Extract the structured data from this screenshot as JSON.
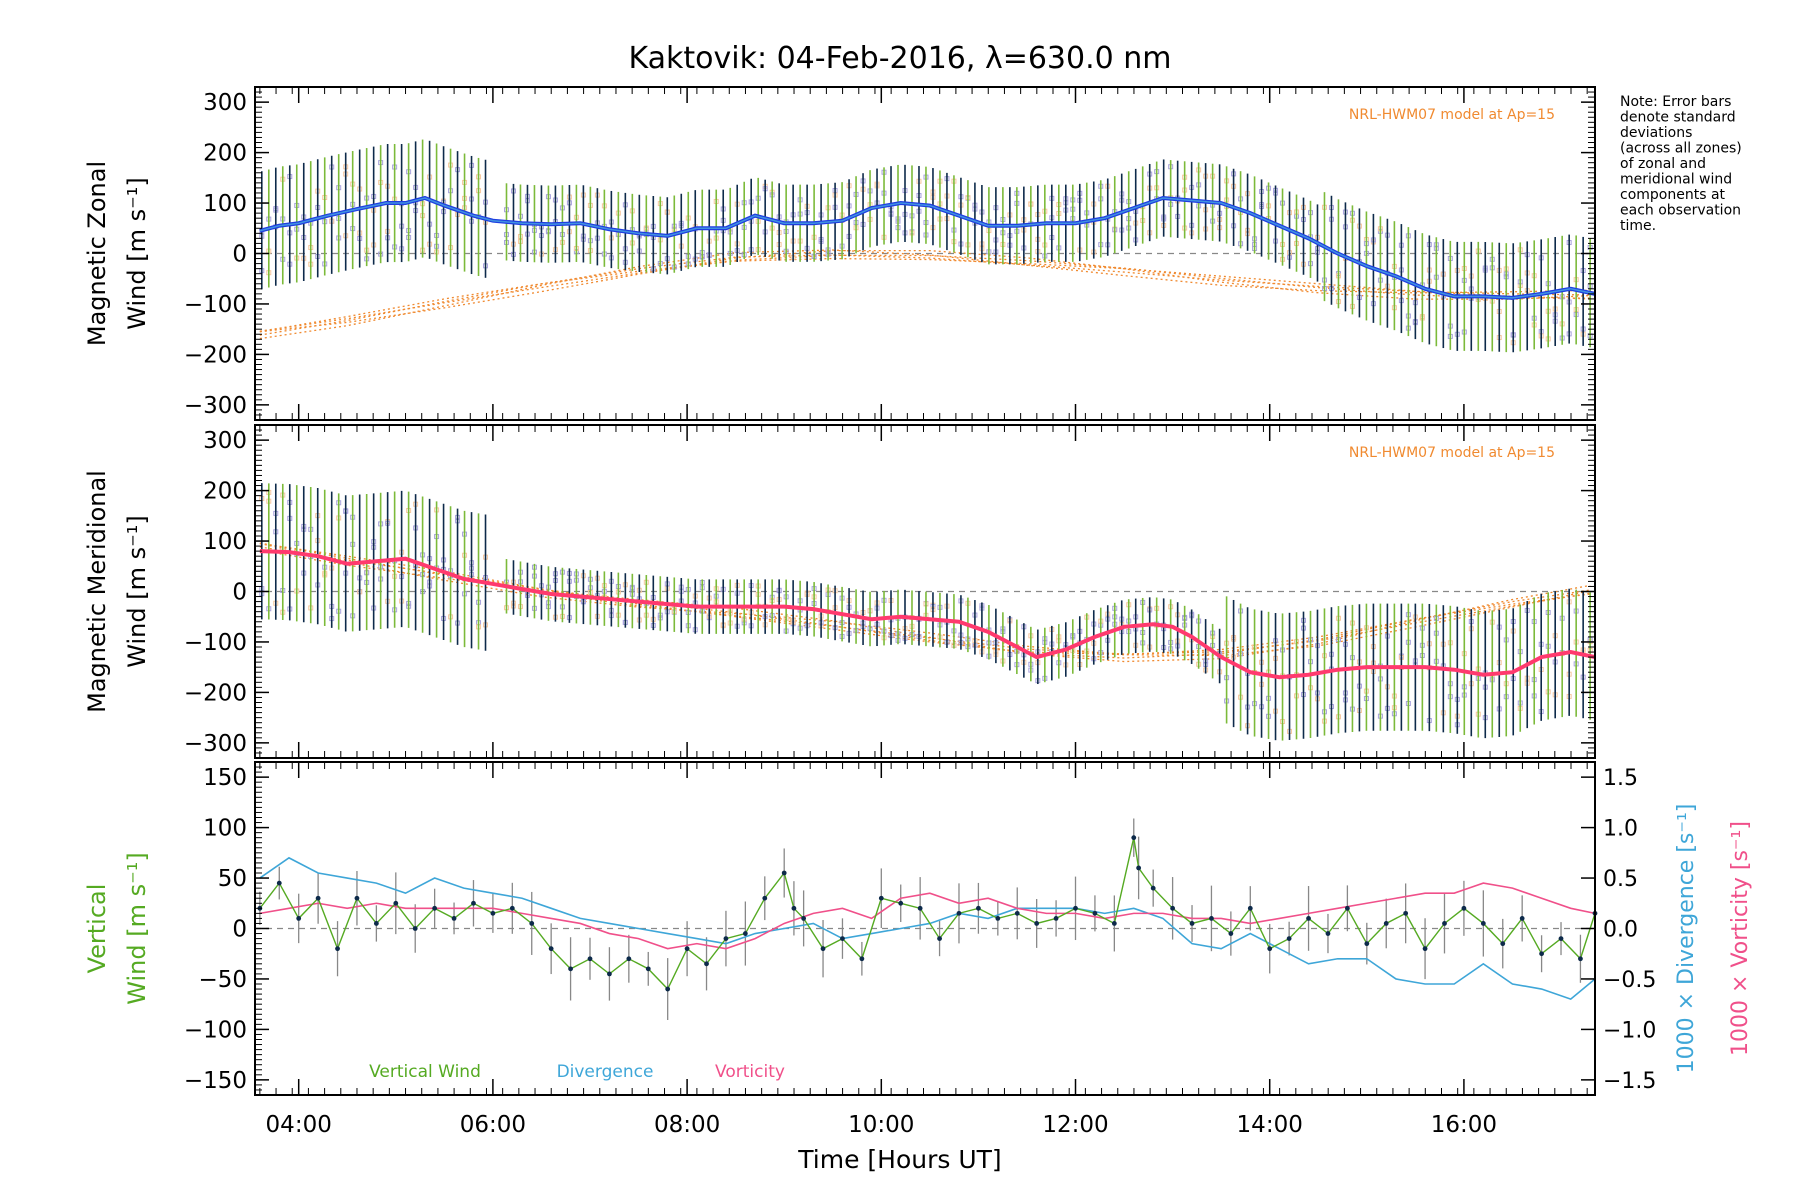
{
  "title": "Kaktovik: 04-Feb-2016, λ=630.0 nm",
  "xlabel": "Time [Hours UT]",
  "note": [
    "Note: Error bars",
    "denote standard",
    "deviations",
    "(across all zones)",
    "of zonal and",
    "meridional wind",
    "components at",
    "each observation",
    "time."
  ],
  "model_label": "NRL-HWM07 model at Ap=15",
  "colors": {
    "zonal": "#1f3fe0",
    "zonal_light": "#4aa8e0",
    "meridional": "#ff3a6e",
    "vertical": "#55aa22",
    "divergence": "#3ea6d8",
    "vorticity": "#f0508a",
    "model": "#f08a30",
    "scatter": "#a9a3dd",
    "errbar_dark": "#0d2a4a",
    "errbar_green": "#7cba3a"
  },
  "chart_data": [
    {
      "type": "line",
      "panel": "zonal",
      "ylabel": [
        "Magnetic Zonal",
        "Wind [m s⁻¹]"
      ],
      "ylim": [
        -330,
        330
      ],
      "yticks": [
        -300,
        -200,
        -100,
        0,
        100,
        200,
        300
      ],
      "xlim": [
        3.55,
        17.35
      ],
      "xticks": [
        4,
        6,
        8,
        10,
        12,
        14,
        16
      ],
      "xticklabels": [
        "04:00",
        "06:00",
        "08:00",
        "10:00",
        "12:00",
        "14:00",
        "16:00"
      ],
      "zero_line": true,
      "series": [
        {
          "kind": "mean",
          "x": [
            3.6,
            3.8,
            4.0,
            4.3,
            4.6,
            4.9,
            5.1,
            5.3,
            5.5,
            5.8,
            6.0,
            6.3,
            6.6,
            6.9,
            7.2,
            7.5,
            7.8,
            8.1,
            8.4,
            8.7,
            9.0,
            9.3,
            9.6,
            9.9,
            10.2,
            10.5,
            10.8,
            11.1,
            11.4,
            11.7,
            12.0,
            12.3,
            12.6,
            12.9,
            13.2,
            13.5,
            13.8,
            14.1,
            14.4,
            14.7,
            15.0,
            15.3,
            15.6,
            15.9,
            16.2,
            16.5,
            16.8,
            17.1,
            17.35
          ],
          "y": [
            45,
            55,
            60,
            75,
            88,
            100,
            100,
            110,
            95,
            75,
            65,
            60,
            58,
            60,
            48,
            40,
            35,
            50,
            50,
            75,
            60,
            60,
            65,
            90,
            100,
            95,
            75,
            55,
            55,
            60,
            60,
            70,
            90,
            110,
            105,
            100,
            80,
            55,
            30,
            0,
            -25,
            -45,
            -70,
            -85,
            -85,
            -88,
            -80,
            -70,
            -80
          ]
        },
        {
          "kind": "model",
          "x": [
            3.6,
            4.5,
            5.5,
            6.5,
            7.5,
            8.5,
            9.5,
            10.5,
            11.5,
            12.5,
            13.5,
            14.5,
            15.5,
            16.5,
            17.3
          ],
          "y": [
            -155,
            -125,
            -90,
            -60,
            -35,
            -15,
            -10,
            -12,
            -20,
            -30,
            -45,
            -60,
            -75,
            -85,
            -90
          ]
        }
      ]
    },
    {
      "type": "line",
      "panel": "meridional",
      "ylabel": [
        "Magnetic Meridional",
        "Wind [m s⁻¹]"
      ],
      "ylim": [
        -330,
        330
      ],
      "yticks": [
        -300,
        -200,
        -100,
        0,
        100,
        200,
        300
      ],
      "xlim": [
        3.55,
        17.35
      ],
      "xticks": [
        4,
        6,
        8,
        10,
        12,
        14,
        16
      ],
      "zero_line": true,
      "series": [
        {
          "kind": "mean",
          "x": [
            3.6,
            3.9,
            4.2,
            4.5,
            4.8,
            5.1,
            5.4,
            5.7,
            6.0,
            6.3,
            6.6,
            6.9,
            7.2,
            7.5,
            7.8,
            8.1,
            8.4,
            8.7,
            9.0,
            9.3,
            9.6,
            9.9,
            10.2,
            10.5,
            10.8,
            11.1,
            11.4,
            11.6,
            11.9,
            12.2,
            12.5,
            12.8,
            13.0,
            13.2,
            13.5,
            13.8,
            14.1,
            14.4,
            14.7,
            15.0,
            15.3,
            15.6,
            15.9,
            16.2,
            16.5,
            16.8,
            17.1,
            17.35
          ],
          "y": [
            80,
            78,
            70,
            55,
            60,
            65,
            45,
            25,
            15,
            5,
            -5,
            -10,
            -15,
            -20,
            -25,
            -30,
            -30,
            -30,
            -30,
            -35,
            -45,
            -55,
            -50,
            -55,
            -60,
            -80,
            -110,
            -130,
            -115,
            -90,
            -70,
            -65,
            -70,
            -90,
            -130,
            -160,
            -170,
            -165,
            -155,
            -150,
            -150,
            -150,
            -155,
            -165,
            -160,
            -130,
            -120,
            -130
          ]
        },
        {
          "kind": "model",
          "x": [
            3.6,
            4.5,
            5.5,
            6.5,
            7.5,
            8.5,
            9.5,
            10.5,
            11.5,
            12.5,
            13.5,
            14.5,
            15.5,
            16.5,
            17.3
          ],
          "y": [
            95,
            70,
            40,
            5,
            -25,
            -50,
            -75,
            -100,
            -120,
            -125,
            -115,
            -90,
            -55,
            -25,
            -5
          ]
        }
      ]
    },
    {
      "type": "line",
      "panel": "vertical",
      "ylabel": [
        "Vertical",
        "Wind [m s⁻¹]"
      ],
      "ylim": [
        -165,
        165
      ],
      "yticks": [
        -150,
        -100,
        -50,
        0,
        50,
        100,
        150
      ],
      "y2lim": [
        -1.65,
        1.65
      ],
      "y2ticks": [
        -1.5,
        -1.0,
        -0.5,
        0.0,
        0.5,
        1.0,
        1.5
      ],
      "y2labels": [
        "1000 × Divergence [s⁻¹]",
        "1000 × Vorticity [s⁻¹]"
      ],
      "xlim": [
        3.55,
        17.35
      ],
      "xticks": [
        4,
        6,
        8,
        10,
        12,
        14,
        16
      ],
      "zero_line": true,
      "legend": [
        "Vertical Wind",
        "Divergence",
        "Vorticity"
      ],
      "series": [
        {
          "name": "Vertical Wind",
          "x": [
            3.6,
            3.8,
            4.0,
            4.2,
            4.4,
            4.6,
            4.8,
            5.0,
            5.2,
            5.4,
            5.6,
            5.8,
            6.0,
            6.2,
            6.4,
            6.6,
            6.8,
            7.0,
            7.2,
            7.4,
            7.6,
            7.8,
            8.0,
            8.2,
            8.4,
            8.6,
            8.8,
            9.0,
            9.1,
            9.2,
            9.4,
            9.6,
            9.8,
            10.0,
            10.2,
            10.4,
            10.6,
            10.8,
            11.0,
            11.2,
            11.4,
            11.6,
            11.8,
            12.0,
            12.2,
            12.4,
            12.6,
            12.65,
            12.8,
            13.0,
            13.2,
            13.4,
            13.6,
            13.8,
            14.0,
            14.2,
            14.4,
            14.6,
            14.8,
            15.0,
            15.2,
            15.4,
            15.6,
            15.8,
            16.0,
            16.2,
            16.4,
            16.6,
            16.8,
            17.0,
            17.2,
            17.35
          ],
          "y": [
            20,
            45,
            10,
            30,
            -20,
            30,
            5,
            25,
            0,
            20,
            10,
            25,
            15,
            20,
            5,
            -20,
            -40,
            -30,
            -45,
            -30,
            -40,
            -60,
            -20,
            -35,
            -10,
            -5,
            30,
            55,
            20,
            10,
            -20,
            -10,
            -30,
            30,
            25,
            20,
            -10,
            15,
            20,
            10,
            15,
            5,
            10,
            20,
            15,
            5,
            90,
            60,
            40,
            20,
            5,
            10,
            -5,
            20,
            -20,
            -10,
            10,
            -5,
            20,
            -15,
            5,
            15,
            -20,
            5,
            20,
            5,
            -15,
            10,
            -25,
            -10,
            -30,
            15
          ],
          "error": 22
        },
        {
          "name": "Divergence",
          "x": [
            3.6,
            3.9,
            4.2,
            4.5,
            4.8,
            5.1,
            5.4,
            5.7,
            6.0,
            6.3,
            6.6,
            6.9,
            7.2,
            7.5,
            7.8,
            8.1,
            8.4,
            8.7,
            9.0,
            9.3,
            9.6,
            9.9,
            10.2,
            10.5,
            10.8,
            11.1,
            11.4,
            11.7,
            12.0,
            12.3,
            12.6,
            12.9,
            13.2,
            13.5,
            13.8,
            14.1,
            14.4,
            14.7,
            15.0,
            15.3,
            15.6,
            15.9,
            16.2,
            16.5,
            16.8,
            17.1,
            17.35
          ],
          "y": [
            0.5,
            0.7,
            0.55,
            0.5,
            0.45,
            0.35,
            0.5,
            0.4,
            0.35,
            0.3,
            0.2,
            0.1,
            0.05,
            0.0,
            -0.05,
            -0.1,
            -0.15,
            -0.05,
            0.0,
            0.05,
            -0.1,
            -0.05,
            0.0,
            0.05,
            0.15,
            0.1,
            0.2,
            0.2,
            0.2,
            0.15,
            0.2,
            0.1,
            -0.15,
            -0.2,
            -0.05,
            -0.2,
            -0.35,
            -0.3,
            -0.3,
            -0.5,
            -0.55,
            -0.55,
            -0.35,
            -0.55,
            -0.6,
            -0.7,
            -0.5
          ]
        },
        {
          "name": "Vorticity",
          "x": [
            3.6,
            3.9,
            4.2,
            4.5,
            4.8,
            5.1,
            5.4,
            5.7,
            6.0,
            6.3,
            6.6,
            6.9,
            7.2,
            7.5,
            7.8,
            8.1,
            8.4,
            8.7,
            9.0,
            9.3,
            9.6,
            9.9,
            10.2,
            10.5,
            10.8,
            11.1,
            11.4,
            11.7,
            12.0,
            12.3,
            12.6,
            12.9,
            13.2,
            13.5,
            13.8,
            14.1,
            14.4,
            14.7,
            15.0,
            15.3,
            15.6,
            15.9,
            16.2,
            16.5,
            16.8,
            17.1,
            17.35
          ],
          "y": [
            0.15,
            0.2,
            0.25,
            0.2,
            0.25,
            0.2,
            0.2,
            0.2,
            0.2,
            0.15,
            0.1,
            0.05,
            -0.05,
            -0.1,
            -0.2,
            -0.15,
            -0.2,
            -0.1,
            0.05,
            0.15,
            0.2,
            0.1,
            0.3,
            0.35,
            0.25,
            0.3,
            0.2,
            0.15,
            0.15,
            0.1,
            0.15,
            0.15,
            0.1,
            0.1,
            0.05,
            0.1,
            0.15,
            0.2,
            0.25,
            0.3,
            0.35,
            0.35,
            0.45,
            0.4,
            0.3,
            0.2,
            0.15
          ]
        }
      ]
    }
  ]
}
